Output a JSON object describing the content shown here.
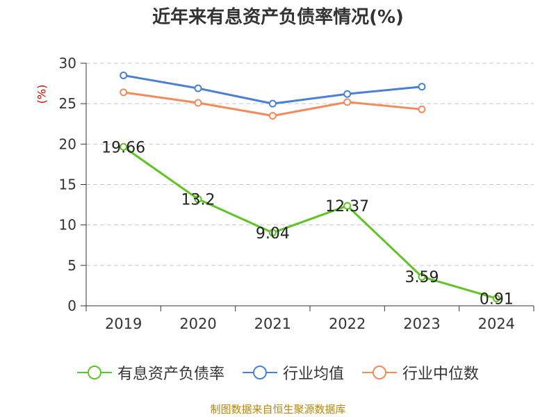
{
  "title": "近年来有息资产负债率情况(%)",
  "source": "制图数据来自恒生聚源数据库",
  "chart_data": {
    "type": "line",
    "title": "近年来有息资产负债率情况(%)",
    "xlabel": "",
    "ylabel": "(%)",
    "ylim": [
      0,
      30
    ],
    "yticks": [
      "0",
      "5",
      "10",
      "15",
      "20",
      "25",
      "30"
    ],
    "categories": [
      "2019",
      "2020",
      "2021",
      "2022",
      "2023",
      "2024"
    ],
    "grid": true,
    "legend_position": "bottom",
    "series": [
      {
        "name": "有息资产负债率",
        "color": "#5ec424",
        "values": [
          19.66,
          13.2,
          9.04,
          12.37,
          3.59,
          0.91
        ],
        "labels": [
          "19.66",
          "13.2",
          "9.04",
          "12.37",
          "3.59",
          "0.91"
        ]
      },
      {
        "name": "行业均值",
        "color": "#4a7fd6",
        "values": [
          28.5,
          26.9,
          25.0,
          26.2,
          27.1,
          null
        ]
      },
      {
        "name": "行业中位数",
        "color": "#f28a5a",
        "values": [
          26.4,
          25.1,
          23.5,
          25.2,
          24.3,
          null
        ]
      }
    ]
  }
}
